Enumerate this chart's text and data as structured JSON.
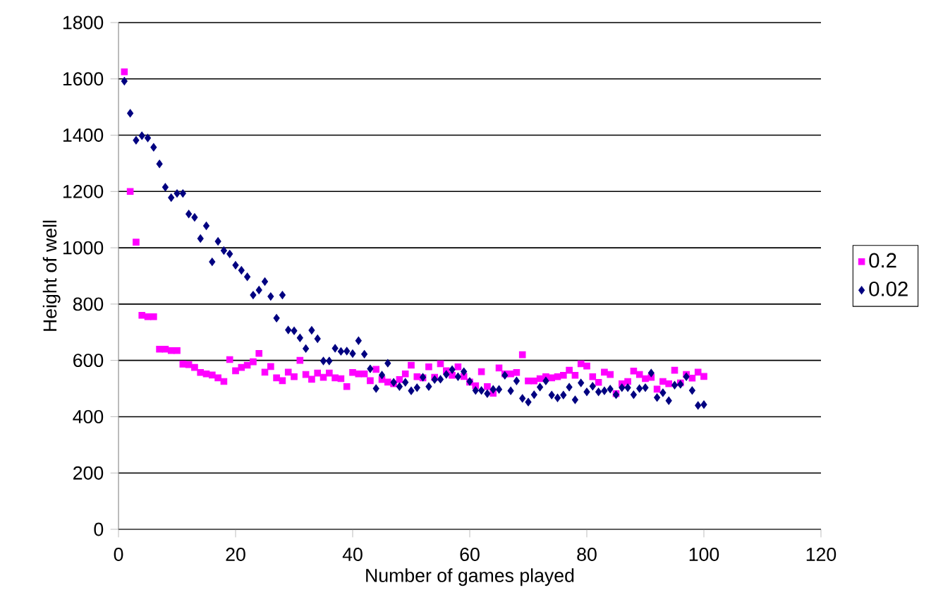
{
  "chart_data": {
    "type": "scatter",
    "xlabel": "Number of games played",
    "ylabel": "Height of well",
    "xlim": [
      0,
      120
    ],
    "ylim": [
      0,
      1800
    ],
    "xticks": [
      0,
      20,
      40,
      60,
      80,
      100,
      120
    ],
    "yticks": [
      0,
      200,
      400,
      600,
      800,
      1000,
      1200,
      1400,
      1600,
      1800
    ],
    "grid": "y",
    "legend": "right",
    "x": [
      1,
      2,
      3,
      4,
      5,
      6,
      7,
      8,
      9,
      10,
      11,
      12,
      13,
      14,
      15,
      16,
      17,
      18,
      19,
      20,
      21,
      22,
      23,
      24,
      25,
      26,
      27,
      28,
      29,
      30,
      31,
      32,
      33,
      34,
      35,
      36,
      37,
      38,
      39,
      40,
      41,
      42,
      43,
      44,
      45,
      46,
      47,
      48,
      49,
      50,
      51,
      52,
      53,
      54,
      55,
      56,
      57,
      58,
      59,
      60,
      61,
      62,
      63,
      64,
      65,
      66,
      67,
      68,
      69,
      70,
      71,
      72,
      73,
      74,
      75,
      76,
      77,
      78,
      79,
      80,
      81,
      82,
      83,
      84,
      85,
      86,
      87,
      88,
      89,
      90,
      91,
      92,
      93,
      94,
      95,
      96,
      97,
      98,
      99,
      100
    ],
    "series": [
      {
        "name": "0.2",
        "color": "#ff00ff",
        "marker": "square",
        "values": [
          1625,
          1200,
          1020,
          760,
          755,
          755,
          640,
          640,
          635,
          635,
          587,
          585,
          575,
          557,
          552,
          548,
          538,
          525,
          603,
          563,
          575,
          583,
          595,
          625,
          558,
          578,
          538,
          528,
          558,
          542,
          600,
          550,
          533,
          555,
          540,
          555,
          538,
          535,
          507,
          557,
          552,
          552,
          528,
          568,
          532,
          523,
          517,
          532,
          552,
          583,
          542,
          538,
          577,
          540,
          588,
          563,
          547,
          577,
          543,
          523,
          510,
          560,
          507,
          483,
          573,
          552,
          552,
          557,
          620,
          527,
          527,
          535,
          542,
          538,
          542,
          547,
          565,
          547,
          588,
          580,
          542,
          522,
          558,
          550,
          482,
          517,
          525,
          562,
          550,
          535,
          540,
          498,
          525,
          517,
          565,
          520,
          550,
          537,
          558,
          543
        ]
      },
      {
        "name": "0.02",
        "color": "#000080",
        "marker": "diamond",
        "values": [
          1592,
          1478,
          1382,
          1398,
          1390,
          1357,
          1298,
          1215,
          1178,
          1193,
          1193,
          1120,
          1108,
          1033,
          1078,
          950,
          1023,
          990,
          978,
          938,
          920,
          897,
          832,
          850,
          880,
          827,
          750,
          832,
          708,
          705,
          680,
          642,
          707,
          677,
          598,
          598,
          643,
          632,
          633,
          624,
          670,
          622,
          570,
          500,
          548,
          590,
          522,
          507,
          522,
          492,
          503,
          540,
          507,
          532,
          533,
          550,
          567,
          542,
          560,
          525,
          493,
          493,
          482,
          497,
          497,
          547,
          492,
          527,
          465,
          452,
          478,
          505,
          527,
          477,
          467,
          477,
          505,
          460,
          520,
          488,
          508,
          488,
          492,
          498,
          478,
          503,
          503,
          478,
          500,
          503,
          555,
          468,
          485,
          457,
          512,
          515,
          542,
          493,
          440,
          443
        ]
      }
    ]
  }
}
